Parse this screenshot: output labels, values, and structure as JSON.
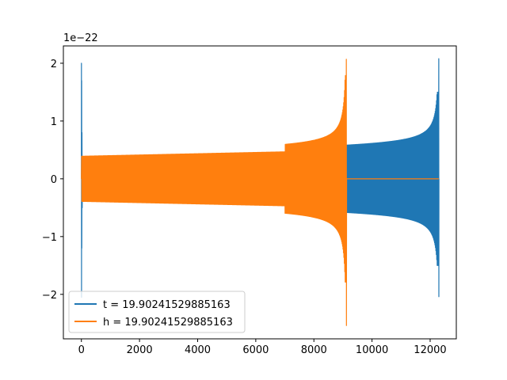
{
  "chart_data": {
    "type": "line",
    "title": "",
    "xlabel": "",
    "ylabel": "",
    "y_scale_factor_label": "1e−22",
    "xlim": [
      -620,
      12900
    ],
    "ylim": [
      -2.77,
      2.3
    ],
    "xticks": [
      0,
      2000,
      4000,
      6000,
      8000,
      10000,
      12000
    ],
    "xtick_labels": [
      "0",
      "2000",
      "4000",
      "6000",
      "8000",
      "10000",
      "12000"
    ],
    "yticks": [
      -2,
      -1,
      0,
      1,
      2
    ],
    "ytick_labels": [
      "−2",
      "−1",
      "0",
      "1",
      "2"
    ],
    "legend_position": "lower-left",
    "grid": false,
    "series": [
      {
        "name": "t = 19.90241529885163",
        "color": "#1f77b4",
        "description_envelope": {
          "x_start": 0,
          "x_end": 12300,
          "initial_spike": 2.0,
          "plateau_amplitude_start": 0.38,
          "amplitude_at_9100": 0.47,
          "peak_amplitude_end": 2.08,
          "min_end": -2.04
        }
      },
      {
        "name": "h = 19.90241529885163",
        "color": "#ff7f0e",
        "description_envelope": {
          "x_start": 0,
          "x_end": 9120,
          "plateau_amplitude_start": 0.39,
          "peak_amplitude_end": 2.07,
          "min_end": -2.54,
          "flat_after_x": 9120,
          "flat_until_x": 12300
        }
      }
    ]
  }
}
